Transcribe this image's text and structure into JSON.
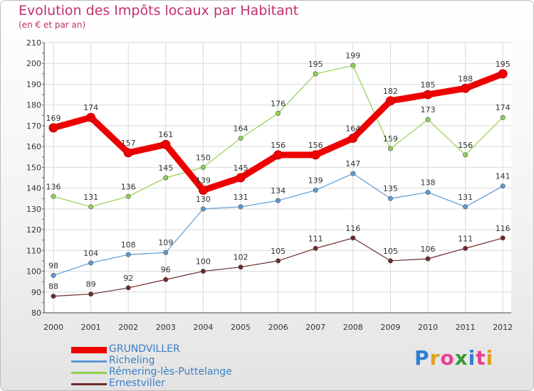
{
  "title": "Evolution des Impôts locaux par Habitant",
  "subtitle": "(en € et par an)",
  "logo": {
    "text": "Proxiti",
    "letter_colors": [
      "#2f7fd0",
      "#e0a020",
      "#e84090",
      "#3a9a3a",
      "#2f7fd0",
      "#e84090",
      "#e0a020"
    ]
  },
  "chart_data": {
    "type": "line",
    "title": "Evolution des Impôts locaux par Habitant",
    "subtitle": "(en € et par an)",
    "xlabel": "",
    "ylabel": "",
    "x": [
      "2000",
      "2001",
      "2002",
      "2003",
      "2004",
      "2005",
      "2006",
      "2007",
      "2008",
      "2009",
      "2010",
      "2011",
      "2012"
    ],
    "ylim": [
      80,
      210
    ],
    "yticks": [
      80,
      90,
      100,
      110,
      120,
      130,
      140,
      150,
      160,
      170,
      180,
      190,
      200,
      210
    ],
    "grid": true,
    "legend_position": "bottom-left",
    "series": [
      {
        "name": "GRUNDVILLER",
        "color": "#ee0000",
        "bold": true,
        "values": [
          169,
          174,
          157,
          161,
          139,
          145,
          156,
          156,
          164,
          182,
          185,
          188,
          195
        ]
      },
      {
        "name": "Richeling",
        "color": "#5b9bd5",
        "values": [
          98,
          104,
          108,
          109,
          130,
          131,
          134,
          139,
          147,
          135,
          138,
          131,
          141
        ]
      },
      {
        "name": "Rémering-lès-Puttelange",
        "color": "#92d050",
        "values": [
          136,
          131,
          136,
          145,
          150,
          164,
          176,
          195,
          199,
          159,
          173,
          156,
          174
        ]
      },
      {
        "name": "Ernestviller",
        "color": "#6b2a2a",
        "values": [
          88,
          89,
          92,
          96,
          100,
          102,
          105,
          111,
          116,
          105,
          106,
          111,
          116
        ]
      }
    ]
  }
}
